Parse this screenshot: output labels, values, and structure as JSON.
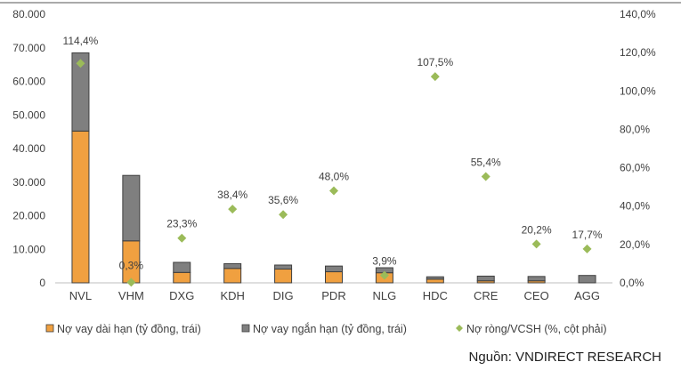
{
  "chart_data": {
    "type": "bar",
    "categories": [
      "NVL",
      "VHM",
      "DXG",
      "KDH",
      "DIG",
      "PDR",
      "NLG",
      "HDC",
      "CRE",
      "CEO",
      "AGG"
    ],
    "series": [
      {
        "name": "Nợ vay dài hạn (tỷ đồng, trái)",
        "kind": "stacked-bar",
        "axis": "left",
        "color": "#F0A040",
        "values": [
          45200,
          12500,
          3100,
          4300,
          4100,
          3300,
          3000,
          1100,
          600,
          600,
          0
        ]
      },
      {
        "name": "Nợ vay ngắn hạn (tỷ đồng, trái)",
        "kind": "stacked-bar",
        "axis": "left",
        "color": "#7F7F7F",
        "values": [
          23300,
          19500,
          3000,
          1400,
          1200,
          1700,
          1500,
          700,
          1400,
          1300,
          2200
        ]
      },
      {
        "name": "Nợ ròng/VCSH (%, cột phải)",
        "kind": "marker",
        "axis": "right",
        "color": "#9BBB59",
        "values": [
          114.4,
          0.3,
          23.3,
          38.4,
          35.6,
          48.0,
          3.9,
          107.5,
          55.4,
          20.2,
          17.7
        ],
        "labels": [
          "114,4%",
          "0,3%",
          "23,3%",
          "38,4%",
          "35,6%",
          "48,0%",
          "3,9%",
          "107,5%",
          "55,4%",
          "20,2%",
          "17,7%"
        ]
      }
    ],
    "y_left": {
      "ylim": [
        0,
        80000
      ],
      "ticks": [
        "0",
        "10.000",
        "20.000",
        "30.000",
        "40.000",
        "50.000",
        "60.000",
        "70.000",
        "80.000"
      ]
    },
    "y_right": {
      "ylim": [
        0,
        140
      ],
      "ticks": [
        "0,0%",
        "20,0%",
        "40,0%",
        "60,0%",
        "80,0%",
        "100,0%",
        "120,0%",
        "140,0%"
      ]
    },
    "grid": false,
    "legend_position": "bottom"
  },
  "source": "Nguồn: VNDIRECT RESEARCH"
}
